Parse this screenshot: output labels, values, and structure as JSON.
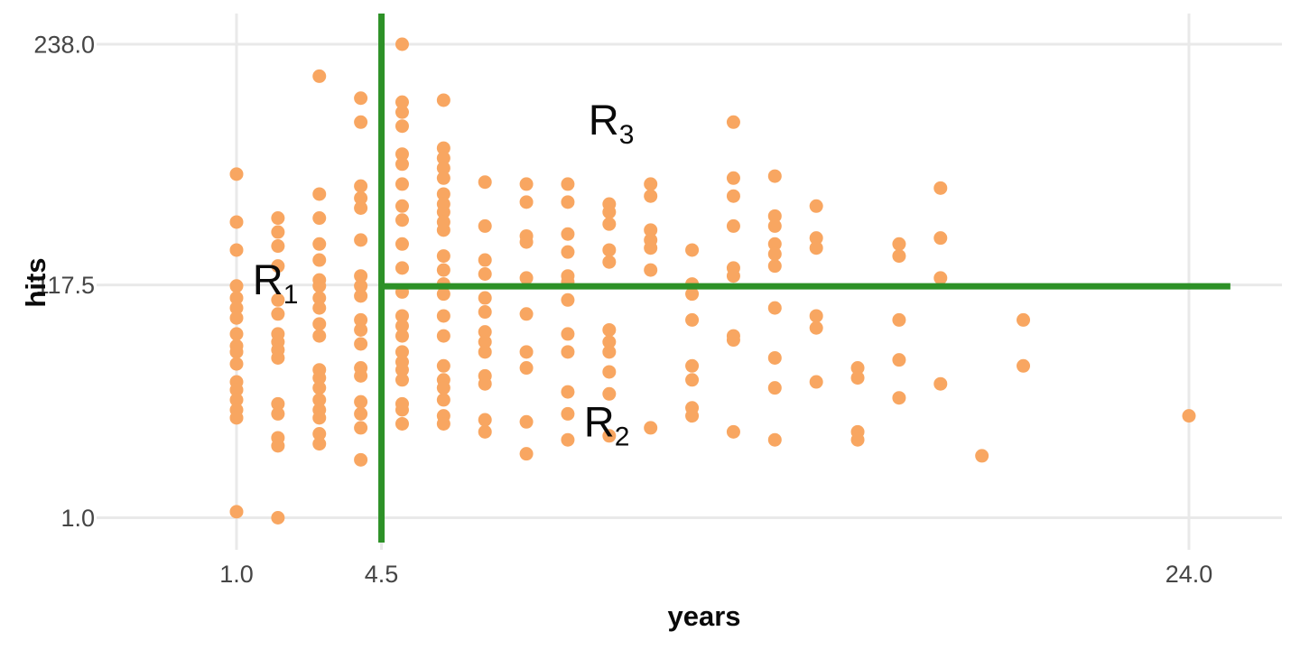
{
  "chart_data": {
    "type": "scatter",
    "title": "",
    "xlabel": "years",
    "ylabel": "hits",
    "x_ticks": [
      {
        "value": 1.0,
        "label": "1.0"
      },
      {
        "value": 4.5,
        "label": "4.5"
      },
      {
        "value": 24.0,
        "label": "24.0"
      }
    ],
    "y_ticks": [
      {
        "value": 1.0,
        "label": "1.0"
      },
      {
        "value": 117.5,
        "label": "117.5"
      },
      {
        "value": 238.0,
        "label": "238.0"
      }
    ],
    "xlim": [
      -2.2,
      26.3
    ],
    "ylim": [
      -11.4,
      253.4
    ],
    "grid": true,
    "legend": "none",
    "point_color": "#F8A661",
    "partition_color": "#2D9127",
    "grid_color": "#E9E9E9",
    "tick_label_color": "#454545",
    "text_color": "#0a0a0a",
    "background_color": "#FFFFFF",
    "partitions": {
      "vertical_line_years": 4.5,
      "horizontal_line_hits": 117.5,
      "horizontal_line_from_years": 4.5,
      "horizontal_line_to_years": 25.0
    },
    "region_labels": [
      {
        "text": "R",
        "sub": "1",
        "years": 1.94,
        "hits": 120
      },
      {
        "text": "R",
        "sub": "2",
        "years": 9.94,
        "hits": 49
      },
      {
        "text": "R",
        "sub": "3",
        "years": 10.05,
        "hits": 200
      }
    ],
    "points_by_years": [
      {
        "years": 1,
        "hits": [
          173,
          149,
          135,
          117,
          111,
          106,
          101,
          93,
          87,
          84,
          78,
          69,
          65,
          60,
          55,
          51,
          4
        ]
      },
      {
        "years": 2,
        "hits": [
          151,
          144,
          137,
          127,
          110,
          103,
          93,
          89,
          85,
          81,
          58,
          53,
          41,
          37,
          1
        ]
      },
      {
        "years": 3,
        "hits": [
          222,
          163,
          151,
          138,
          130,
          120,
          117,
          111,
          106,
          98,
          92,
          75,
          71,
          66,
          60,
          55,
          51,
          43,
          38
        ]
      },
      {
        "years": 4,
        "hits": [
          211,
          199,
          167,
          161,
          156,
          140,
          122,
          117,
          112,
          100,
          95,
          88,
          76,
          72,
          59,
          53,
          46,
          30
        ]
      },
      {
        "years": 5,
        "hits": [
          238,
          209,
          204,
          197,
          183,
          178,
          168,
          157,
          150,
          138,
          126,
          114,
          102,
          97,
          92,
          84,
          79,
          75,
          70,
          58,
          55,
          48
        ]
      },
      {
        "years": 6,
        "hits": [
          210,
          186,
          181,
          176,
          171,
          163,
          158,
          154,
          149,
          145,
          132,
          125,
          118,
          113,
          102,
          92,
          77,
          70,
          66,
          60,
          52,
          48
        ]
      },
      {
        "years": 7,
        "hits": [
          169,
          147,
          130,
          123,
          111,
          104,
          94,
          89,
          84,
          72,
          68,
          50,
          44
        ]
      },
      {
        "years": 8,
        "hits": [
          168,
          159,
          142,
          139,
          121,
          103,
          84,
          76,
          49,
          33
        ]
      },
      {
        "years": 9,
        "hits": [
          168,
          159,
          143,
          134,
          122,
          119,
          110,
          93,
          84,
          64,
          53,
          40
        ]
      },
      {
        "years": 10,
        "hits": [
          158,
          154,
          148,
          135,
          129,
          95,
          89,
          84,
          74,
          63,
          42
        ]
      },
      {
        "years": 11,
        "hits": [
          168,
          162,
          145,
          140,
          136,
          125,
          46
        ]
      },
      {
        "years": 12,
        "hits": [
          135,
          118,
          113,
          100,
          77,
          70,
          56,
          52
        ]
      },
      {
        "years": 13,
        "hits": [
          199,
          171,
          162,
          147,
          126,
          122,
          92,
          90,
          44
        ]
      },
      {
        "years": 14,
        "hits": [
          172,
          152,
          147,
          138,
          133,
          127,
          106,
          81,
          66,
          40
        ]
      },
      {
        "years": 15,
        "hits": [
          157,
          141,
          136,
          102,
          96,
          69
        ]
      },
      {
        "years": 16,
        "hits": [
          76,
          71,
          44,
          40
        ]
      },
      {
        "years": 17,
        "hits": [
          138,
          132,
          100,
          80,
          61
        ]
      },
      {
        "years": 18,
        "hits": [
          166,
          141,
          121,
          68
        ]
      },
      {
        "years": 19,
        "hits": [
          32
        ]
      },
      {
        "years": 20,
        "hits": [
          100,
          77
        ]
      },
      {
        "years": 24,
        "hits": [
          52
        ]
      }
    ]
  }
}
